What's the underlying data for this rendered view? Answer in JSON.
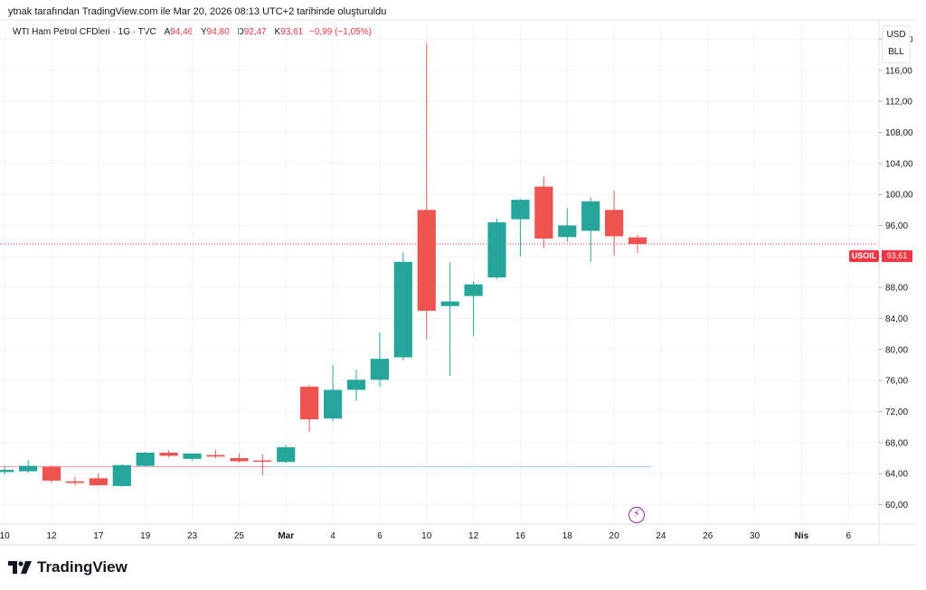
{
  "header": {
    "attribution": "ytnak tarafından TradingView.com ile Mar 20, 2026 08:13 UTC+2 tarihinde oluşturuldu"
  },
  "legend": {
    "symbol": "WTI Ham Petrol CFDleri · 1G · TVC",
    "open_label": "A",
    "open": "94,46",
    "high_label": "Y",
    "high": "94,80",
    "low_label": "D",
    "low": "92,47",
    "close_label": "K",
    "close": "93,61",
    "change": "−0,99 (−1,05%)"
  },
  "axis": {
    "currency": "USD",
    "unit": "BLL",
    "price_tag": "USOIL",
    "last_price": "93,61"
  },
  "branding": {
    "name": "TradingView"
  },
  "colors": {
    "up": "#26a69a",
    "down": "#ef5350",
    "grid": "#f0f3fa",
    "event": "#9c27b0"
  },
  "chart_data": {
    "type": "candlestick",
    "y_ticks": [
      "60,00",
      "64,00",
      "68,00",
      "72,00",
      "76,00",
      "80,00",
      "84,00",
      "88,00",
      "92,00",
      "96,00",
      "100,00",
      "104,00",
      "108,00",
      "112,00",
      "116,00",
      "120,00"
    ],
    "y_tick_values": [
      60,
      64,
      68,
      72,
      76,
      80,
      84,
      88,
      92,
      96,
      100,
      104,
      108,
      112,
      116,
      120
    ],
    "ylim": [
      57.5,
      122.5
    ],
    "x_ticks": [
      "10",
      "12",
      "17",
      "19",
      "23",
      "25",
      "Mar",
      "4",
      "6",
      "10",
      "12",
      "16",
      "18",
      "20",
      "24",
      "26",
      "30",
      "Nis",
      "6"
    ],
    "x_tick_slots": [
      0,
      2,
      4,
      6,
      8,
      10,
      12,
      14,
      16,
      18,
      20,
      22,
      24,
      26,
      28,
      30,
      32,
      34,
      36
    ],
    "x_slot_range": [
      -0.2,
      37.3
    ],
    "candles": [
      {
        "o": 64.2,
        "h": 65.0,
        "l": 63.9,
        "c": 64.5
      },
      {
        "o": 64.3,
        "h": 65.7,
        "l": 64.1,
        "c": 65.0
      },
      {
        "o": 64.9,
        "h": 65.1,
        "l": 62.8,
        "c": 63.1
      },
      {
        "o": 63.0,
        "h": 63.6,
        "l": 62.5,
        "c": 62.8
      },
      {
        "o": 63.4,
        "h": 64.0,
        "l": 62.4,
        "c": 62.5
      },
      {
        "o": 62.4,
        "h": 65.2,
        "l": 62.3,
        "c": 65.1
      },
      {
        "o": 65.0,
        "h": 66.8,
        "l": 64.9,
        "c": 66.7
      },
      {
        "o": 66.7,
        "h": 67.0,
        "l": 66.1,
        "c": 66.3
      },
      {
        "o": 65.9,
        "h": 66.6,
        "l": 65.7,
        "c": 66.6
      },
      {
        "o": 66.4,
        "h": 67.0,
        "l": 66.0,
        "c": 66.2
      },
      {
        "o": 66.0,
        "h": 66.6,
        "l": 65.4,
        "c": 65.6
      },
      {
        "o": 65.7,
        "h": 66.5,
        "l": 63.8,
        "c": 65.6
      },
      {
        "o": 65.5,
        "h": 67.7,
        "l": 65.4,
        "c": 67.4
      },
      {
        "o": 75.2,
        "h": 75.4,
        "l": 69.4,
        "c": 71.0
      },
      {
        "o": 71.1,
        "h": 78.0,
        "l": 70.7,
        "c": 74.8
      },
      {
        "o": 74.8,
        "h": 77.4,
        "l": 73.4,
        "c": 76.1
      },
      {
        "o": 76.1,
        "h": 82.2,
        "l": 75.2,
        "c": 78.8
      },
      {
        "o": 79.0,
        "h": 92.5,
        "l": 78.6,
        "c": 91.3
      },
      {
        "o": 98.0,
        "h": 119.5,
        "l": 81.3,
        "c": 85.0
      },
      {
        "o": 85.6,
        "h": 91.2,
        "l": 76.6,
        "c": 86.2
      },
      {
        "o": 86.9,
        "h": 88.8,
        "l": 81.8,
        "c": 88.4
      },
      {
        "o": 89.3,
        "h": 96.9,
        "l": 89.1,
        "c": 96.4
      },
      {
        "o": 96.8,
        "h": 99.4,
        "l": 92.0,
        "c": 99.3
      },
      {
        "o": 101.0,
        "h": 102.3,
        "l": 93.1,
        "c": 94.3
      },
      {
        "o": 94.5,
        "h": 98.2,
        "l": 93.9,
        "c": 96.0
      },
      {
        "o": 95.3,
        "h": 99.6,
        "l": 91.3,
        "c": 99.1
      },
      {
        "o": 98.0,
        "h": 100.5,
        "l": 92.1,
        "c": 94.6
      },
      {
        "o": 94.46,
        "h": 94.8,
        "l": 92.47,
        "c": 93.61
      }
    ],
    "baseline_value": 64.9,
    "last_price_value": 93.61
  }
}
